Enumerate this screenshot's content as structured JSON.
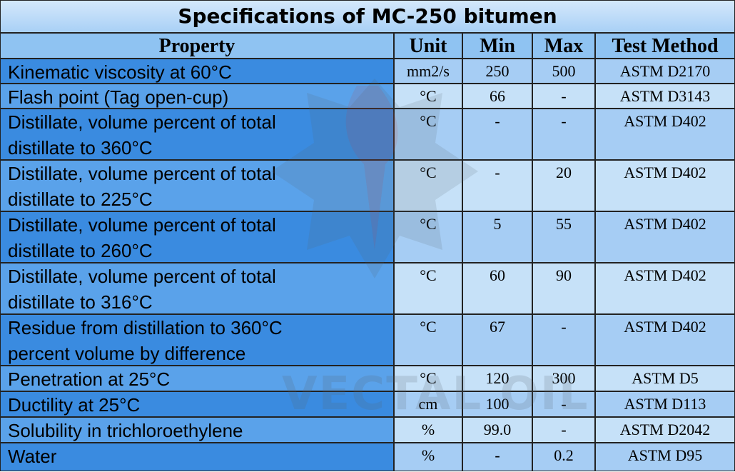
{
  "title": "Specifications of MC-250 bitumen",
  "watermark": "VECTAL OIL",
  "table": {
    "header": [
      "Property",
      "Unit",
      "Min",
      "Max",
      "Test Method"
    ],
    "rows": [
      [
        "Kinematic viscosity at 60°C",
        "mm2/s",
        "250",
        "500",
        "ASTM D2170"
      ],
      [
        "Flash point (Tag open-cup)",
        "°C",
        "66",
        "-",
        "ASTM D3143"
      ],
      [
        "Distillate, volume percent of total distillate to 360°C",
        "°C",
        "-",
        "-",
        "ASTM D402"
      ],
      [
        "Distillate, volume percent of total distillate to 225°C",
        "°C",
        "-",
        "20",
        "ASTM D402"
      ],
      [
        "Distillate, volume percent of total distillate to 260°C",
        "°C",
        "5",
        "55",
        "ASTM D402"
      ],
      [
        "Distillate, volume percent of total distillate to 316°C",
        "°C",
        "60",
        "90",
        "ASTM D402"
      ],
      [
        "Residue from distillation to 360°C percent volume by difference",
        "°C",
        "67",
        "-",
        "ASTM D402"
      ],
      [
        "Penetration at 25°C",
        "°C",
        "120",
        "300",
        "ASTM D5"
      ],
      [
        "Ductility at 25°C",
        "cm",
        "100",
        "-",
        "ASTM D113"
      ],
      [
        "Solubility in trichloroethylene",
        "%",
        "99.0",
        "-",
        "ASTM D2042"
      ],
      [
        "Water",
        "%",
        "-",
        "0.2",
        "ASTM D95"
      ]
    ]
  }
}
